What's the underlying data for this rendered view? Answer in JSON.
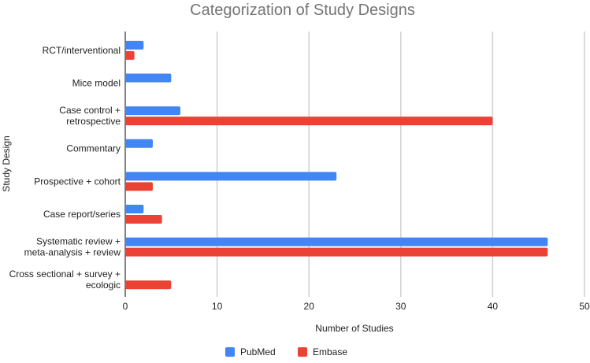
{
  "chart_data": {
    "type": "bar",
    "orientation": "horizontal",
    "title": "Categorization of Study Designs",
    "xlabel": "Number of Studies",
    "ylabel": "Study Design",
    "xlim": [
      0,
      50
    ],
    "xticks": [
      0,
      10,
      20,
      30,
      40,
      50
    ],
    "grid": true,
    "legend_position": "bottom",
    "categories": [
      [
        "RCT/interventional"
      ],
      [
        "Mice model"
      ],
      [
        "Case control +",
        "retrospective"
      ],
      [
        "Commentary"
      ],
      [
        "Prospective + cohort"
      ],
      [
        "Case report/series"
      ],
      [
        "Systematic review +",
        "meta-analysis + review"
      ],
      [
        "Cross sectional + survey +",
        "ecologic"
      ]
    ],
    "series": [
      {
        "name": "PubMed",
        "color": "#4285F4",
        "values": [
          2,
          5,
          6,
          3,
          23,
          2,
          46,
          0
        ]
      },
      {
        "name": "Embase",
        "color": "#EA4335",
        "values": [
          1,
          0,
          40,
          0,
          3,
          4,
          46,
          5
        ]
      }
    ]
  }
}
